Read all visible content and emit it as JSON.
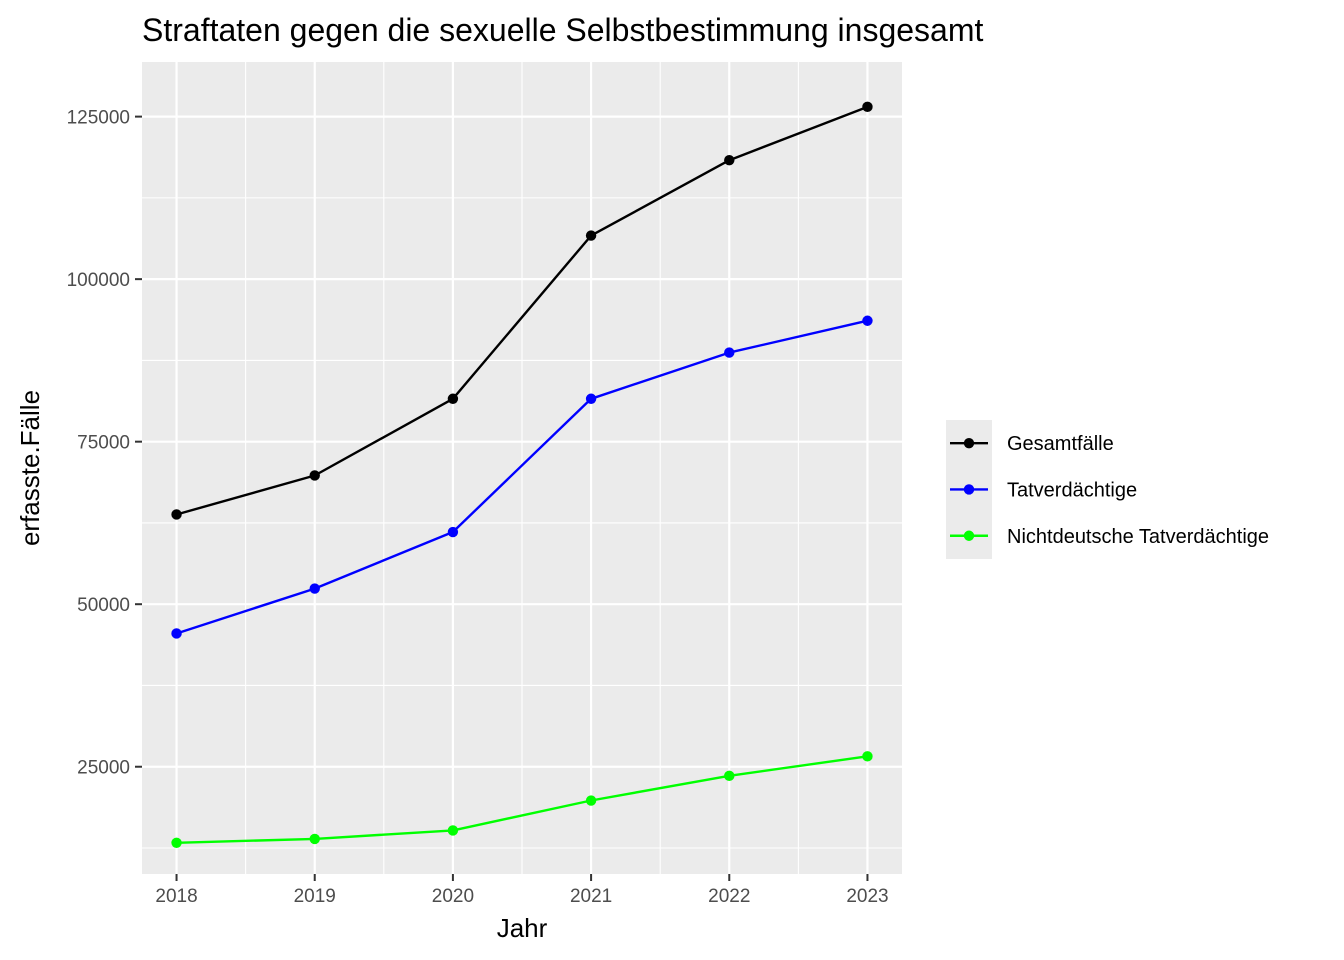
{
  "chart_data": {
    "type": "line",
    "title": "Straftaten gegen die sexuelle Selbstbestimmung insgesamt",
    "xlabel": "Jahr",
    "ylabel": "erfasste.Fälle",
    "x": [
      2018,
      2019,
      2020,
      2021,
      2022,
      2023
    ],
    "x_tick_labels": [
      "2018",
      "2019",
      "2020",
      "2021",
      "2022",
      "2023"
    ],
    "xlim": [
      2017.75,
      2023.25
    ],
    "ylim": [
      8500,
      133400
    ],
    "y_ticks": [
      25000,
      50000,
      75000,
      100000,
      125000
    ],
    "y_tick_labels": [
      "25000",
      "50000",
      "75000",
      "100000",
      "125000"
    ],
    "grid": true,
    "legend_position": "right",
    "series": [
      {
        "name": "Gesamtfälle",
        "color": "#000000",
        "values": [
          63800,
          69800,
          81600,
          106700,
          118300,
          126500
        ]
      },
      {
        "name": "Tatverdächtige",
        "color": "#0000ff",
        "values": [
          45500,
          52400,
          61100,
          81600,
          88700,
          93600
        ]
      },
      {
        "name": "Nichtdeutsche Tatverdächtige",
        "color": "#00ff00",
        "values": [
          13300,
          13900,
          15200,
          19800,
          23600,
          26600
        ]
      }
    ]
  }
}
